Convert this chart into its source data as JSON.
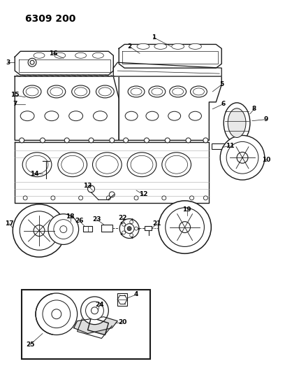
{
  "title": "6309 200",
  "bg_color": "#ffffff",
  "line_color": "#1a1a1a",
  "fig_width": 4.08,
  "fig_height": 5.33,
  "dpi": 100
}
